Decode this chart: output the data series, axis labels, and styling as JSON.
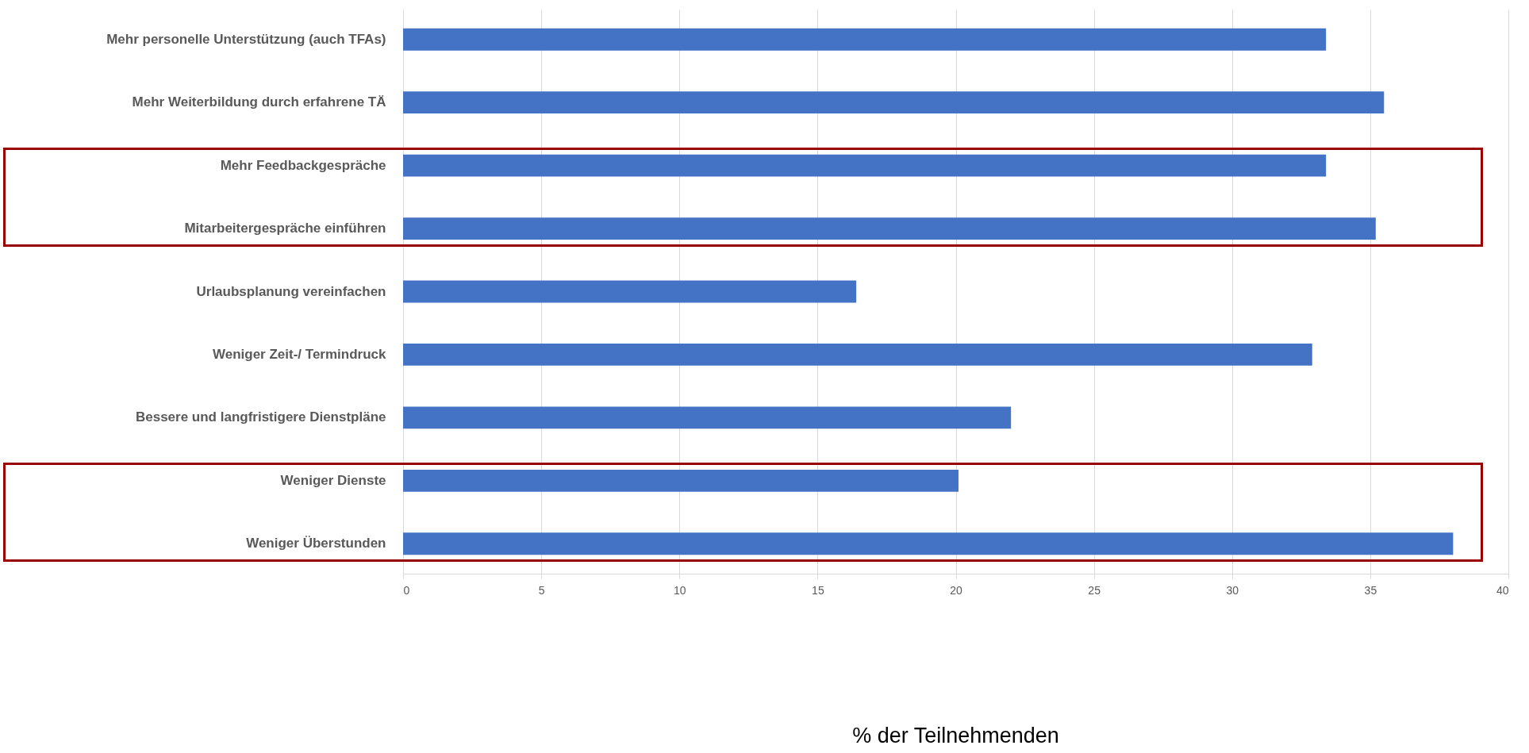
{
  "chart_data": {
    "type": "bar",
    "orientation": "horizontal",
    "annotations": [
      "% der Teilnehmenden"
    ],
    "categories": [
      "Mehr personelle Unterstützung (auch TFAs)",
      "Mehr Weiterbildung durch erfahrene TÄ",
      "Mehr Feedbackgespräche",
      "Mitarbeitergespräche einführen",
      "Urlaubsplanung vereinfachen",
      "Weniger Zeit-/ Termindruck",
      "Bessere und langfristigere Dienstpläne",
      "Weniger Dienste",
      "Weniger Überstunden"
    ],
    "values": [
      33.4,
      35.5,
      33.4,
      35.2,
      16.4,
      32.9,
      22.0,
      20.1,
      38.0
    ],
    "color": "#4472c4",
    "xlim": [
      0,
      40
    ],
    "xticks": [
      0,
      5,
      10,
      15,
      20,
      25,
      30,
      35,
      40
    ],
    "grid": "x"
  }
}
